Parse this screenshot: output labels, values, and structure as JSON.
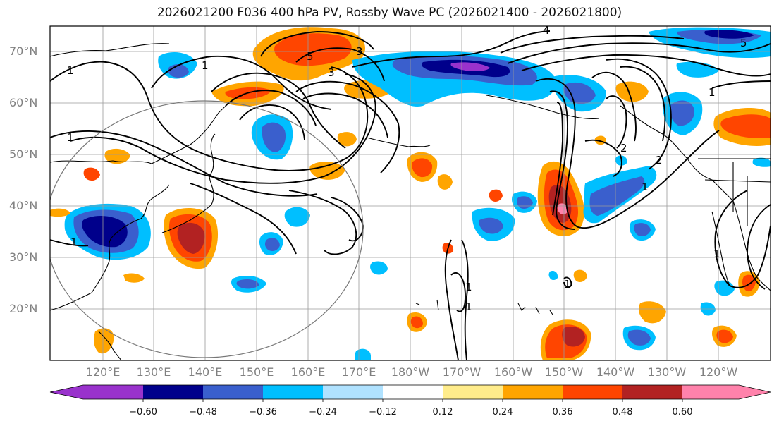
{
  "title": "2026021200 F036 400 hPa PV, Rossby Wave PC (2026021400 - 2026021800)",
  "lat_labels": [
    "70°N",
    "60°N",
    "50°N",
    "40°N",
    "30°N",
    "20°N"
  ],
  "lon_labels": [
    "120°E",
    "130°E",
    "140°E",
    "150°E",
    "160°E",
    "170°E",
    "180°W",
    "170°W",
    "160°W",
    "150°W",
    "140°W",
    "130°W",
    "120°W"
  ],
  "colorbar": {
    "ticks": [
      "−0.60",
      "−0.48",
      "−0.36",
      "−0.24",
      "−0.12",
      "0.12",
      "0.24",
      "0.36",
      "0.48",
      "0.60"
    ],
    "colors": [
      "#9932cc",
      "#00008b",
      "#3a5fcd",
      "#00bfff",
      "#b0e2ff",
      "#ffffff",
      "#ffec8b",
      "#ffa500",
      "#ff4500",
      "#b22222",
      "#ff82ab"
    ]
  },
  "contour_labels": [
    "1",
    "1",
    "1",
    "3",
    "3",
    "5",
    "4",
    "5",
    "1",
    "2",
    "2",
    "1",
    "1",
    "1",
    "1",
    "1",
    "1"
  ]
}
